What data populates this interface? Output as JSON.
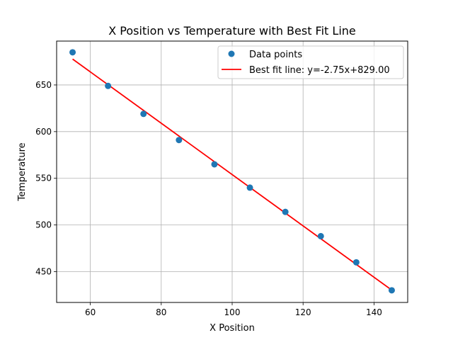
{
  "chart_data": {
    "type": "scatter",
    "title": "X Position vs Temperature with Best Fit Line",
    "xlabel": "X Position",
    "ylabel": "Temperature",
    "xlim": [
      50.5,
      149.5
    ],
    "ylim": [
      417,
      697
    ],
    "xticks": [
      60,
      80,
      100,
      120,
      140
    ],
    "yticks": [
      450,
      500,
      550,
      600,
      650
    ],
    "grid": true,
    "legend_position": "top-right",
    "series": [
      {
        "name": "Data points",
        "kind": "scatter",
        "color": "#1f77b4",
        "x": [
          55,
          65,
          75,
          85,
          95,
          105,
          115,
          125,
          135,
          145
        ],
        "y": [
          685,
          649,
          619,
          591,
          565,
          540,
          514,
          488,
          460,
          430
        ]
      },
      {
        "name": "Best fit line: y=-2.75x+829.00",
        "kind": "line",
        "color": "#ff0000",
        "slope": -2.75,
        "intercept": 829.0,
        "x": [
          55,
          145
        ]
      }
    ]
  }
}
